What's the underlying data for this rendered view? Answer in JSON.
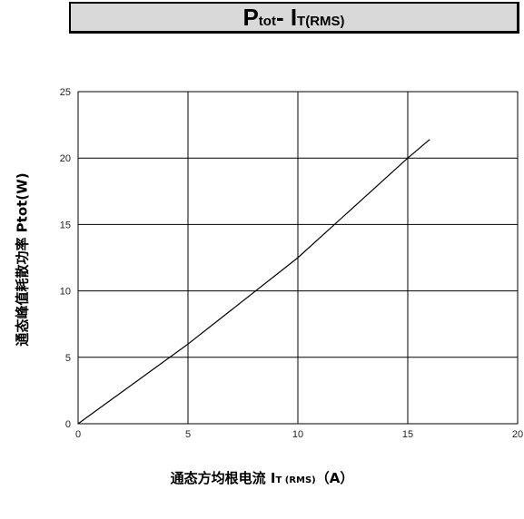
{
  "chart_data": {
    "type": "line",
    "title": {
      "main": "P",
      "main_sub": "tot",
      "sep": "- I",
      "sep_sub": "T(RMS)"
    },
    "ylabel": "通态峰值耗散功率 Ptot(W)",
    "xlabel": {
      "main": "通态方均根电流 I",
      "sub": "T (RMS)",
      "unit": "（A）"
    },
    "xlim": [
      0,
      20
    ],
    "ylim": [
      0,
      25
    ],
    "x_ticks": [
      0,
      5,
      10,
      15,
      20
    ],
    "y_ticks": [
      0,
      5,
      10,
      15,
      20,
      25
    ],
    "grid": true,
    "series": [
      {
        "x": [
          0,
          5,
          10,
          15,
          16
        ],
        "y": [
          0,
          6.0,
          12.5,
          20.0,
          21.4
        ]
      }
    ]
  }
}
